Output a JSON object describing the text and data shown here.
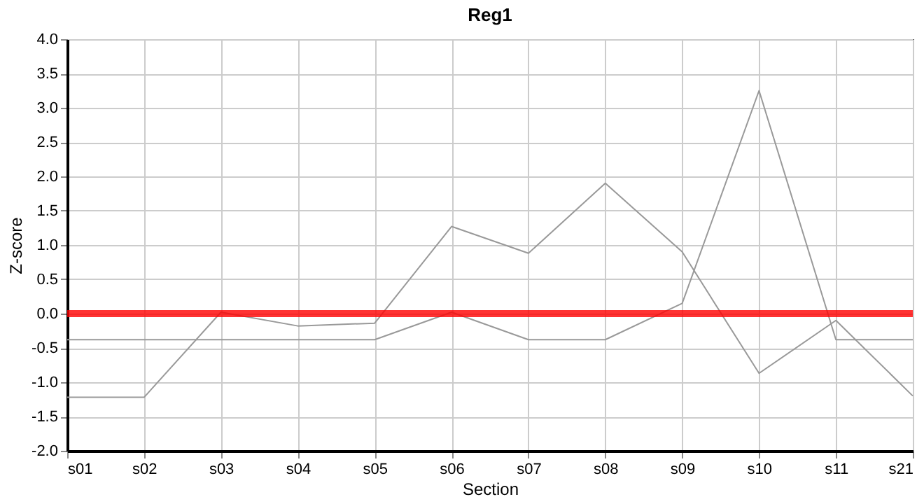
{
  "chart_data": {
    "type": "line",
    "title": "Reg1",
    "xlabel": "Section",
    "ylabel": "Z-score",
    "categories": [
      "s01",
      "s02",
      "s03",
      "s04",
      "s05",
      "s06",
      "s07",
      "s08",
      "s09",
      "s10",
      "s11",
      "s21"
    ],
    "series": [
      {
        "color": "#999999",
        "values": [
          -1.22,
          -1.22,
          0.02,
          -0.18,
          -0.14,
          1.27,
          0.88,
          1.9,
          0.9,
          -0.87,
          -0.1,
          -1.2
        ]
      },
      {
        "color": "#999999",
        "values": [
          -0.38,
          -0.38,
          -0.38,
          -0.38,
          -0.38,
          0.02,
          -0.38,
          -0.38,
          0.15,
          3.25,
          -0.38,
          -0.38
        ]
      }
    ],
    "ylim": [
      -2,
      4
    ],
    "yticks": [
      {
        "value": -2,
        "label": "-2.0"
      },
      {
        "value": -1.5,
        "label": "-1.5"
      },
      {
        "value": -1,
        "label": "-1.0"
      },
      {
        "value": -0.5,
        "label": "-0.5"
      },
      {
        "value": 0,
        "label": "0.0"
      },
      {
        "value": 0.5,
        "label": "0.5"
      },
      {
        "value": 1,
        "label": "1.0"
      },
      {
        "value": 1.5,
        "label": "1.5"
      },
      {
        "value": 2,
        "label": "2.0"
      },
      {
        "value": 2.5,
        "label": "2.5"
      },
      {
        "value": 3,
        "label": "3.0"
      },
      {
        "value": 3.5,
        "label": "3.5"
      },
      {
        "value": 4,
        "label": "4.0"
      }
    ],
    "ref_lines": [
      {
        "axis": "y",
        "value": 0,
        "color": "#ff0000"
      }
    ],
    "grid": true,
    "marker": "none",
    "line_style": "solid"
  }
}
